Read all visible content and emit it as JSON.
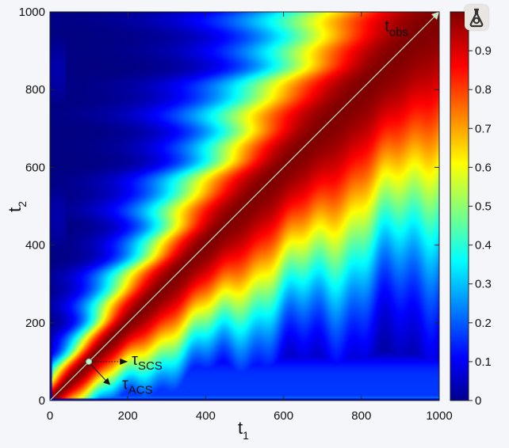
{
  "ui": {
    "icon_name": "flask-icon"
  },
  "chart_data": {
    "type": "heatmap",
    "title": "",
    "xlabel": "t",
    "xlabel_sub": "1",
    "ylabel": "t",
    "ylabel_sub": "2",
    "xlim": [
      0,
      1000
    ],
    "ylim": [
      0,
      1000
    ],
    "xticks": [
      "0",
      "200",
      "400",
      "600",
      "800",
      "1000"
    ],
    "xtick_values": [
      0,
      200,
      400,
      600,
      800,
      1000
    ],
    "yticks": [
      "0",
      "200",
      "400",
      "600",
      "800",
      "1000"
    ],
    "ytick_values": [
      0,
      200,
      400,
      600,
      800,
      1000
    ],
    "colorbar": {
      "range": [
        0,
        1
      ],
      "ticks": [
        "0",
        "0.1",
        "0.2",
        "0.3",
        "0.4",
        "0.5",
        "0.6",
        "0.7",
        "0.8",
        "0.9"
      ],
      "tick_values": [
        0,
        0.1,
        0.2,
        0.3,
        0.4,
        0.5,
        0.6,
        0.7,
        0.8,
        0.9
      ],
      "colormap": "jet"
    },
    "diagonal_line": {
      "from": [
        0,
        0
      ],
      "to": [
        1000,
        1000
      ],
      "color": "#c8e6c9"
    },
    "marked_point": {
      "t1": 100,
      "t2": 100
    },
    "annotations": [
      {
        "label": "t",
        "sub": "obs",
        "x": 860,
        "y": 950
      },
      {
        "label": "τ",
        "sub": "SCS",
        "x": 210,
        "y": 92
      },
      {
        "label": "τ",
        "sub": "ACS",
        "x": 185,
        "y": 30
      }
    ],
    "arrow_points": {
      "scs_target": [
        200,
        100
      ],
      "acs_target": [
        155,
        40
      ]
    },
    "correlation_model": {
      "peak_along_diagonal": 1.0,
      "lower_band_edge": 100,
      "note_values": [
        0,
        0.3,
        0.5,
        0.8,
        1.0
      ]
    }
  }
}
